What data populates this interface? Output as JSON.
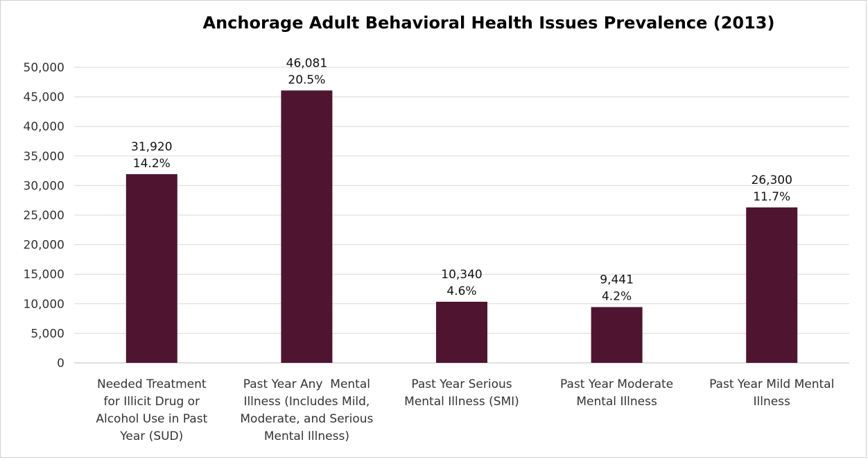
{
  "chart_data": {
    "type": "bar",
    "title": "Anchorage Adult Behavioral Health Issues Prevalence (2013)",
    "xlabel": "",
    "ylabel": "",
    "ylim": [
      0,
      50000
    ],
    "yticks": [
      "0",
      "5,000",
      "10,000",
      "15,000",
      "20,000",
      "25,000",
      "30,000",
      "35,000",
      "40,000",
      "45,000",
      "50,000"
    ],
    "grid": true,
    "bar_color": "#4f1530",
    "categories": [
      [
        "Needed Treatment",
        "for Illicit Drug or",
        "Alcohol Use in Past",
        "Year (SUD)"
      ],
      [
        "Past Year Any  Mental",
        "Illness (Includes Mild,",
        "Moderate, and Serious",
        "Mental Illness)"
      ],
      [
        "Past Year Serious",
        "Mental Illness (SMI)"
      ],
      [
        "Past Year Moderate",
        "Mental Illness"
      ],
      [
        "Past Year Mild Mental",
        "Illness"
      ]
    ],
    "values": [
      31920,
      46081,
      10340,
      9441,
      26300
    ],
    "data_labels": [
      [
        "31,920",
        "14.2%"
      ],
      [
        "46,081",
        "20.5%"
      ],
      [
        "10,340",
        "4.6%"
      ],
      [
        "9,441",
        "4.2%"
      ],
      [
        "26,300",
        "11.7%"
      ]
    ]
  }
}
